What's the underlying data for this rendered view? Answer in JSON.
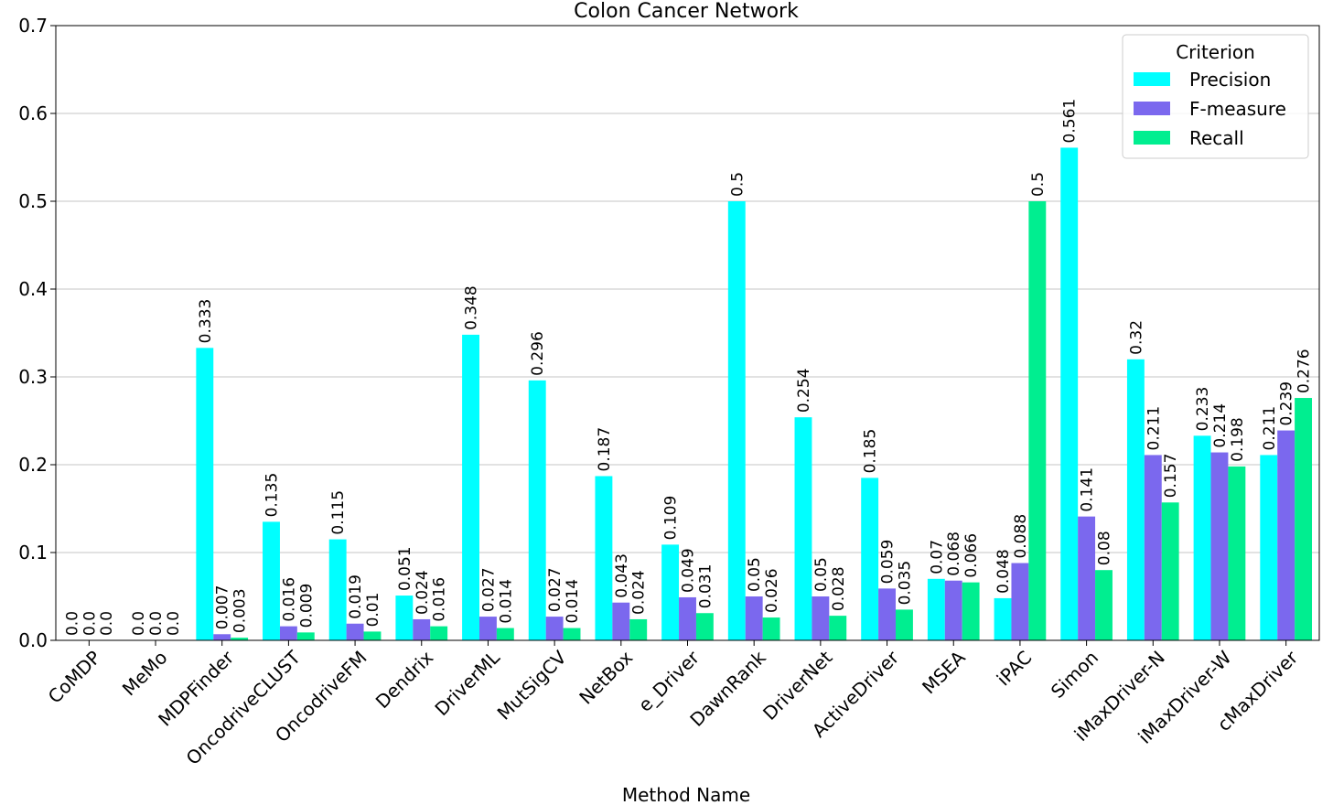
{
  "chart_data": {
    "type": "bar",
    "title": "Colon Cancer Network",
    "xlabel": "Method Name",
    "ylabel": "",
    "ylim": [
      0,
      0.7
    ],
    "yticks": [
      "0.0",
      "0.1",
      "0.2",
      "0.3",
      "0.4",
      "0.5",
      "0.6",
      "0.7"
    ],
    "grid": "y",
    "legend": {
      "title": "Criterion",
      "position": "top-right"
    },
    "categories": [
      "CoMDP",
      "MeMo",
      "MDPFinder",
      "OncodriveCLUST",
      "OncodriveFM",
      "Dendrix",
      "DriverML",
      "MutSigCV",
      "NetBox",
      "e_Driver",
      "DawnRank",
      "DriverNet",
      "ActiveDriver",
      "MSEA",
      "iPAC",
      "Simon",
      "iMaxDriver-N",
      "iMaxDriver-W",
      "cMaxDriver"
    ],
    "series": [
      {
        "name": "Precision",
        "color": "#00ffff",
        "values": [
          0.0,
          0.0,
          0.333,
          0.135,
          0.115,
          0.051,
          0.348,
          0.296,
          0.187,
          0.109,
          0.5,
          0.254,
          0.185,
          0.07,
          0.048,
          0.561,
          0.32,
          0.233,
          0.211
        ],
        "labels": [
          "0.0",
          "0.0",
          "0.333",
          "0.135",
          "0.115",
          "0.051",
          "0.348",
          "0.296",
          "0.187",
          "0.109",
          "0.5",
          "0.254",
          "0.185",
          "0.07",
          "0.048",
          "0.561",
          "0.32",
          "0.233",
          "0.211"
        ]
      },
      {
        "name": "F-measure",
        "color": "#7b68ee",
        "values": [
          0.0,
          0.0,
          0.007,
          0.016,
          0.019,
          0.024,
          0.027,
          0.027,
          0.043,
          0.049,
          0.05,
          0.05,
          0.059,
          0.068,
          0.088,
          0.141,
          0.211,
          0.214,
          0.239
        ],
        "labels": [
          "0.0",
          "0.0",
          "0.007",
          "0.016",
          "0.019",
          "0.024",
          "0.027",
          "0.027",
          "0.043",
          "0.049",
          "0.05",
          "0.05",
          "0.059",
          "0.068",
          "0.088",
          "0.141",
          "0.211",
          "0.214",
          "0.239"
        ]
      },
      {
        "name": "Recall",
        "color": "#00ee90",
        "values": [
          0.0,
          0.0,
          0.003,
          0.009,
          0.01,
          0.016,
          0.014,
          0.014,
          0.024,
          0.031,
          0.026,
          0.028,
          0.035,
          0.066,
          0.5,
          0.08,
          0.157,
          0.198,
          0.276
        ],
        "labels": [
          "0.0",
          "0.0",
          "0.003",
          "0.009",
          "0.01",
          "0.016",
          "0.014",
          "0.014",
          "0.024",
          "0.031",
          "0.026",
          "0.028",
          "0.035",
          "0.066",
          "0.5",
          "0.08",
          "0.157",
          "0.198",
          "0.276"
        ]
      }
    ]
  }
}
